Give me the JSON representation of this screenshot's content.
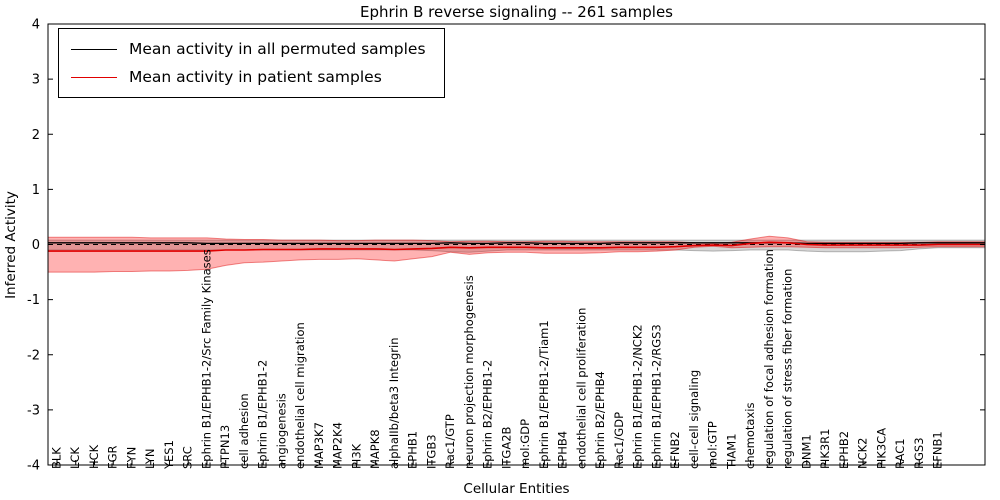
{
  "chart_data": {
    "type": "line",
    "title": "Ephrin B reverse signaling -- 261 samples",
    "xlabel": "Cellular Entities",
    "ylabel": "Inferred Activity",
    "ylim": [
      -4,
      4
    ],
    "yticks": [
      -4,
      -3,
      -2,
      -1,
      0,
      1,
      2,
      3,
      4
    ],
    "grid": false,
    "legend_position": "upper-left",
    "zero_line": {
      "y": 0,
      "style": "dashed",
      "color": "#000000"
    },
    "categories": [
      "BLK",
      "LCK",
      "HCK",
      "FGR",
      "FYN",
      "LYN",
      "YES1",
      "SRC",
      "Ephrin B1/EPHB1-2/Src Family Kinases",
      "PTPN13",
      "cell adhesion",
      "Ephrin B1/EPHB1-2",
      "angiogenesis",
      "endothelial cell migration",
      "MAP3K7",
      "MAP2K4",
      "PI3K",
      "MAPK8",
      "alphaIIb/beta3 Integrin",
      "EPHB1",
      "ITGB3",
      "Rac1/GTP",
      "neuron projection morphogenesis",
      "Ephrin B2/EPHB1-2",
      "ITGA2B",
      "mol:GDP",
      "Ephrin B1/EPHB1-2/Tiam1",
      "EPHB4",
      "endothelial cell proliferation",
      "Ephrin B2/EPHB4",
      "Rac1/GDP",
      "Ephrin B1/EPHB1-2/NCK2",
      "Ephrin B1/EPHB1-2/RGS3",
      "EFNB2",
      "cell-cell signaling",
      "mol:GTP",
      "TIAM1",
      "chemotaxis",
      "regulation of focal adhesion formation",
      "regulation of stress fiber formation",
      "DNM1",
      "PIK3R1",
      "EPHB2",
      "NCK2",
      "PIK3CA",
      "RAC1",
      "RGS3",
      "EFNB1"
    ],
    "series": [
      {
        "name": "Mean activity in all permuted samples",
        "color": "#000000",
        "values": [
          0.03,
          0.03,
          0.03,
          0.03,
          0.03,
          0.03,
          0.03,
          0.03,
          0.02,
          0.02,
          0.02,
          0.02,
          0.02,
          0.02,
          0.02,
          0.02,
          0.02,
          0.02,
          0.02,
          0.02,
          0.02,
          0.03,
          0.02,
          0.02,
          0.03,
          0.03,
          0.02,
          0.02,
          0.02,
          0.02,
          0.03,
          0.03,
          0.03,
          0.03,
          0.03,
          0.03,
          0.03,
          0.03,
          0.03,
          0.03,
          0.02,
          0.02,
          0.02,
          0.02,
          0.02,
          0.02,
          0.03,
          0.03
        ]
      },
      {
        "name": "Mean activity in patient samples",
        "color": "#e00000",
        "values": [
          -0.12,
          -0.12,
          -0.12,
          -0.12,
          -0.12,
          -0.12,
          -0.12,
          -0.12,
          -0.12,
          -0.1,
          -0.1,
          -0.09,
          -0.09,
          -0.09,
          -0.08,
          -0.08,
          -0.08,
          -0.08,
          -0.09,
          -0.08,
          -0.07,
          -0.05,
          -0.06,
          -0.05,
          -0.05,
          -0.05,
          -0.06,
          -0.06,
          -0.06,
          -0.06,
          -0.05,
          -0.05,
          -0.05,
          -0.04,
          -0.02,
          -0.01,
          -0.02,
          0.02,
          0.04,
          0.03,
          0.0,
          -0.01,
          -0.01,
          -0.01,
          -0.01,
          -0.01,
          -0.01,
          0.0
        ]
      }
    ],
    "bands": [
      {
        "name": "permuted samples range",
        "fill": "rgba(0,0,0,0.16)",
        "edge": "rgba(0,0,0,0.25)",
        "upper": [
          0.08,
          0.08,
          0.08,
          0.08,
          0.08,
          0.08,
          0.08,
          0.08,
          0.08,
          0.08,
          0.08,
          0.08,
          0.08,
          0.08,
          0.08,
          0.08,
          0.08,
          0.08,
          0.08,
          0.08,
          0.08,
          0.08,
          0.08,
          0.08,
          0.08,
          0.08,
          0.08,
          0.08,
          0.08,
          0.08,
          0.08,
          0.08,
          0.08,
          0.08,
          0.08,
          0.08,
          0.08,
          0.08,
          0.08,
          0.08,
          0.08,
          0.08,
          0.08,
          0.08,
          0.08,
          0.08,
          0.08,
          0.08
        ],
        "lower": [
          -0.1,
          -0.1,
          -0.1,
          -0.1,
          -0.1,
          -0.1,
          -0.1,
          -0.1,
          -0.1,
          -0.1,
          -0.1,
          -0.1,
          -0.1,
          -0.1,
          -0.1,
          -0.1,
          -0.1,
          -0.1,
          -0.1,
          -0.1,
          -0.11,
          -0.13,
          -0.14,
          -0.12,
          -0.1,
          -0.1,
          -0.1,
          -0.1,
          -0.1,
          -0.1,
          -0.1,
          -0.1,
          -0.1,
          -0.1,
          -0.11,
          -0.12,
          -0.11,
          -0.1,
          -0.1,
          -0.1,
          -0.12,
          -0.13,
          -0.13,
          -0.13,
          -0.12,
          -0.11,
          -0.08,
          -0.06
        ]
      },
      {
        "name": "patient samples range",
        "fill": "rgba(255,0,0,0.30)",
        "edge": "rgba(220,0,0,0.45)",
        "upper": [
          0.13,
          0.13,
          0.13,
          0.13,
          0.13,
          0.12,
          0.12,
          0.12,
          0.12,
          0.1,
          0.09,
          0.09,
          0.08,
          0.08,
          0.08,
          0.07,
          0.07,
          0.08,
          0.08,
          0.08,
          0.07,
          0.05,
          0.06,
          0.06,
          0.05,
          0.05,
          0.06,
          0.06,
          0.05,
          0.05,
          0.05,
          0.05,
          0.05,
          0.05,
          0.03,
          0.02,
          0.04,
          0.1,
          0.15,
          0.12,
          0.05,
          0.04,
          0.04,
          0.04,
          0.04,
          0.04,
          0.04,
          0.05
        ],
        "lower": [
          -0.5,
          -0.5,
          -0.5,
          -0.49,
          -0.49,
          -0.48,
          -0.48,
          -0.47,
          -0.45,
          -0.38,
          -0.33,
          -0.32,
          -0.3,
          -0.28,
          -0.27,
          -0.27,
          -0.26,
          -0.28,
          -0.3,
          -0.26,
          -0.22,
          -0.14,
          -0.18,
          -0.15,
          -0.14,
          -0.14,
          -0.16,
          -0.16,
          -0.16,
          -0.15,
          -0.13,
          -0.13,
          -0.12,
          -0.1,
          -0.05,
          -0.03,
          -0.06,
          -0.05,
          -0.04,
          -0.04,
          -0.05,
          -0.06,
          -0.06,
          -0.06,
          -0.06,
          -0.06,
          -0.05,
          -0.04
        ]
      }
    ]
  }
}
